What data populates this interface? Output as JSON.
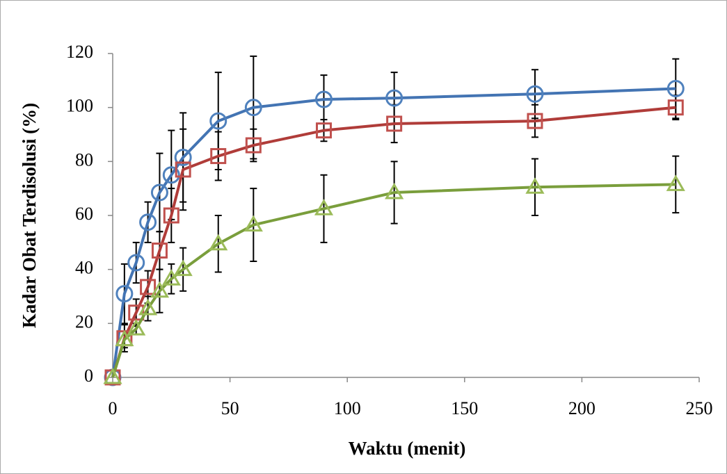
{
  "chart_data": {
    "type": "line",
    "x_label": "Waktu (menit)",
    "y_label": "Kadar Obat Terdisolusi (%)",
    "x": [
      0,
      5,
      10,
      15,
      20,
      25,
      30,
      45,
      60,
      90,
      120,
      180,
      240
    ],
    "xlim": [
      0,
      250
    ],
    "xticks": [
      0,
      50,
      100,
      150,
      200,
      250
    ],
    "ylim": [
      0,
      120
    ],
    "yticks": [
      0,
      20,
      40,
      60,
      80,
      100,
      120
    ],
    "series": [
      {
        "color": "#4f81bd",
        "line_color": "#4374b3",
        "marker": "circle",
        "values": [
          0,
          31,
          42.5,
          57.5,
          68.5,
          75,
          81.5,
          95,
          100,
          103,
          103.5,
          105,
          107
        ],
        "errors": [
          0,
          11,
          7.5,
          7.5,
          14.5,
          16.5,
          16.5,
          18,
          19,
          9,
          9.5,
          9,
          11
        ]
      },
      {
        "color": "#c0504d",
        "line_color": "#b03c39",
        "marker": "square",
        "values": [
          0,
          14.5,
          24,
          33.5,
          47,
          60,
          77,
          82,
          86,
          91.5,
          94,
          95,
          100
        ],
        "errors": [
          0,
          5,
          5,
          6,
          7,
          10,
          15,
          9,
          6,
          4,
          7,
          6,
          4.5
        ]
      },
      {
        "color": "#9bbb59",
        "line_color": "#7a9e3c",
        "marker": "triangle",
        "values": [
          0,
          14,
          18,
          25.5,
          32,
          36.5,
          40,
          49.5,
          56.5,
          62.5,
          68.5,
          70.5,
          71.5
        ],
        "errors": [
          0,
          3,
          2,
          4.5,
          8,
          5.5,
          8,
          10.5,
          13.5,
          12.5,
          11.5,
          10.5,
          10.5
        ]
      }
    ]
  }
}
